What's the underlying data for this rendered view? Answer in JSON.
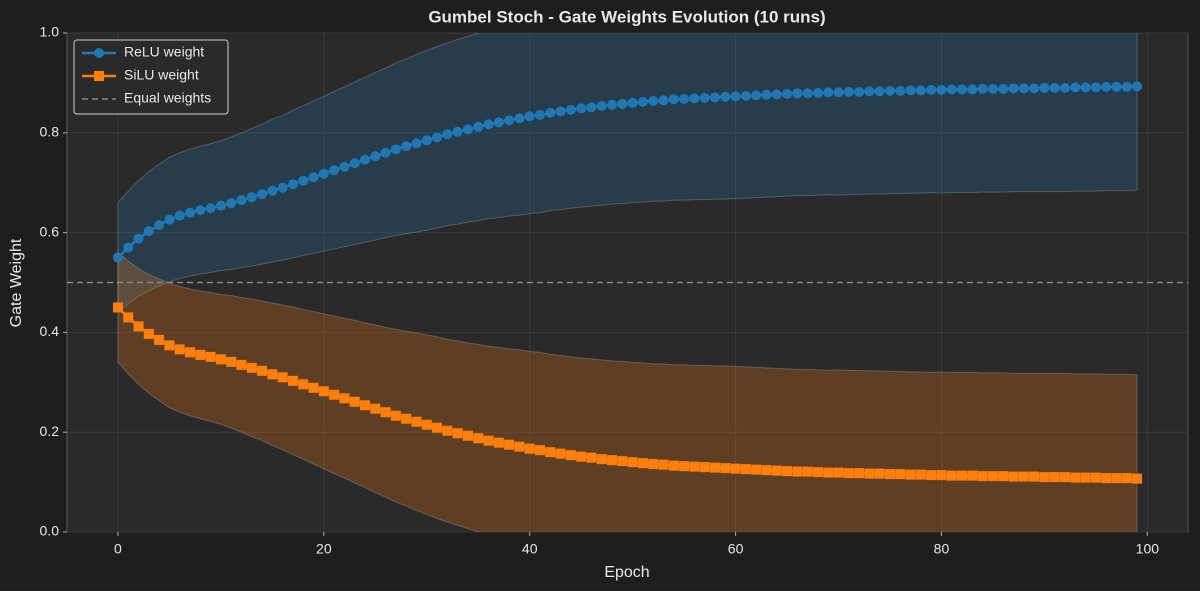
{
  "chart_data": {
    "type": "line",
    "title": "Gumbel Stoch - Gate Weights Evolution (10 runs)",
    "x_label": "Epoch",
    "y_label": "Gate Weight",
    "x": [
      0,
      1,
      2,
      3,
      4,
      5,
      6,
      7,
      8,
      9,
      10,
      11,
      12,
      13,
      14,
      15,
      16,
      17,
      18,
      19,
      20,
      21,
      22,
      23,
      24,
      25,
      26,
      27,
      28,
      29,
      30,
      31,
      32,
      33,
      34,
      35,
      36,
      37,
      38,
      39,
      40,
      41,
      42,
      43,
      44,
      45,
      46,
      47,
      48,
      49,
      50,
      51,
      52,
      53,
      54,
      55,
      56,
      57,
      58,
      59,
      60,
      61,
      62,
      63,
      64,
      65,
      66,
      67,
      68,
      69,
      70,
      71,
      72,
      73,
      74,
      75,
      76,
      77,
      78,
      79,
      80,
      81,
      82,
      83,
      84,
      85,
      86,
      87,
      88,
      89,
      90,
      91,
      92,
      93,
      94,
      95,
      96,
      97,
      98,
      99
    ],
    "series": [
      {
        "name": "ReLU weight",
        "color": "#1f77b4",
        "marker": "circle",
        "values": [
          0.55,
          0.57,
          0.588,
          0.603,
          0.615,
          0.626,
          0.634,
          0.64,
          0.645,
          0.649,
          0.654,
          0.659,
          0.665,
          0.671,
          0.677,
          0.684,
          0.69,
          0.697,
          0.704,
          0.711,
          0.718,
          0.725,
          0.732,
          0.739,
          0.746,
          0.753,
          0.76,
          0.767,
          0.773,
          0.779,
          0.785,
          0.791,
          0.797,
          0.802,
          0.807,
          0.812,
          0.817,
          0.821,
          0.825,
          0.829,
          0.833,
          0.836,
          0.84,
          0.843,
          0.846,
          0.849,
          0.851,
          0.854,
          0.856,
          0.858,
          0.86,
          0.862,
          0.864,
          0.865,
          0.867,
          0.868,
          0.869,
          0.87,
          0.871,
          0.872,
          0.873,
          0.874,
          0.875,
          0.876,
          0.877,
          0.878,
          0.879,
          0.879,
          0.88,
          0.881,
          0.881,
          0.882,
          0.882,
          0.883,
          0.883,
          0.884,
          0.884,
          0.885,
          0.885,
          0.886,
          0.886,
          0.887,
          0.887,
          0.887,
          0.888,
          0.888,
          0.888,
          0.889,
          0.889,
          0.889,
          0.89,
          0.89,
          0.89,
          0.891,
          0.891,
          0.891,
          0.892,
          0.892,
          0.892,
          0.893
        ],
        "std": [
          0.11,
          0.113,
          0.116,
          0.119,
          0.122,
          0.125,
          0.126,
          0.127,
          0.128,
          0.129,
          0.13,
          0.133,
          0.135,
          0.138,
          0.14,
          0.143,
          0.145,
          0.148,
          0.15,
          0.153,
          0.155,
          0.158,
          0.16,
          0.163,
          0.165,
          0.168,
          0.17,
          0.173,
          0.175,
          0.178,
          0.18,
          0.182,
          0.183,
          0.185,
          0.186,
          0.188,
          0.189,
          0.191,
          0.192,
          0.194,
          0.195,
          0.196,
          0.196,
          0.197,
          0.197,
          0.198,
          0.198,
          0.199,
          0.199,
          0.2,
          0.2,
          0.201,
          0.201,
          0.202,
          0.202,
          0.203,
          0.203,
          0.204,
          0.204,
          0.205,
          0.205,
          0.205,
          0.205,
          0.205,
          0.205,
          0.205,
          0.205,
          0.205,
          0.205,
          0.205,
          0.206,
          0.206,
          0.206,
          0.206,
          0.206,
          0.206,
          0.206,
          0.206,
          0.206,
          0.206,
          0.207,
          0.207,
          0.207,
          0.207,
          0.207,
          0.207,
          0.207,
          0.207,
          0.207,
          0.207,
          0.208,
          0.208,
          0.208,
          0.208,
          0.208,
          0.208,
          0.208,
          0.208,
          0.208,
          0.208
        ]
      },
      {
        "name": "SiLU weight",
        "color": "#ff7f0e",
        "marker": "square",
        "values": [
          0.45,
          0.43,
          0.412,
          0.397,
          0.385,
          0.374,
          0.366,
          0.36,
          0.355,
          0.351,
          0.346,
          0.341,
          0.335,
          0.329,
          0.323,
          0.316,
          0.31,
          0.303,
          0.296,
          0.289,
          0.282,
          0.275,
          0.268,
          0.261,
          0.254,
          0.247,
          0.24,
          0.233,
          0.227,
          0.221,
          0.215,
          0.209,
          0.203,
          0.198,
          0.193,
          0.188,
          0.183,
          0.179,
          0.175,
          0.171,
          0.167,
          0.164,
          0.16,
          0.157,
          0.154,
          0.151,
          0.149,
          0.146,
          0.144,
          0.142,
          0.14,
          0.138,
          0.136,
          0.135,
          0.133,
          0.132,
          0.131,
          0.13,
          0.129,
          0.128,
          0.127,
          0.126,
          0.125,
          0.124,
          0.123,
          0.122,
          0.121,
          0.121,
          0.12,
          0.119,
          0.119,
          0.118,
          0.118,
          0.117,
          0.117,
          0.116,
          0.116,
          0.115,
          0.115,
          0.114,
          0.114,
          0.113,
          0.113,
          0.113,
          0.112,
          0.112,
          0.112,
          0.111,
          0.111,
          0.111,
          0.11,
          0.11,
          0.11,
          0.109,
          0.109,
          0.109,
          0.108,
          0.108,
          0.108,
          0.107
        ],
        "std": [
          0.11,
          0.113,
          0.116,
          0.119,
          0.122,
          0.125,
          0.126,
          0.127,
          0.128,
          0.129,
          0.13,
          0.133,
          0.135,
          0.138,
          0.14,
          0.143,
          0.145,
          0.148,
          0.15,
          0.153,
          0.155,
          0.158,
          0.16,
          0.163,
          0.165,
          0.168,
          0.17,
          0.173,
          0.175,
          0.178,
          0.18,
          0.182,
          0.183,
          0.185,
          0.186,
          0.188,
          0.189,
          0.191,
          0.192,
          0.194,
          0.195,
          0.196,
          0.196,
          0.197,
          0.197,
          0.198,
          0.198,
          0.199,
          0.199,
          0.2,
          0.2,
          0.201,
          0.201,
          0.202,
          0.202,
          0.203,
          0.203,
          0.204,
          0.204,
          0.205,
          0.205,
          0.205,
          0.205,
          0.205,
          0.205,
          0.205,
          0.205,
          0.205,
          0.205,
          0.205,
          0.206,
          0.206,
          0.206,
          0.206,
          0.206,
          0.206,
          0.206,
          0.206,
          0.206,
          0.206,
          0.207,
          0.207,
          0.207,
          0.207,
          0.207,
          0.207,
          0.207,
          0.207,
          0.207,
          0.207,
          0.208,
          0.208,
          0.208,
          0.208,
          0.208,
          0.208,
          0.208,
          0.208,
          0.208,
          0.208
        ]
      }
    ],
    "reference_line": {
      "name": "Equal weights",
      "value": 0.5,
      "color": "#888888"
    },
    "xlim": [
      -4.95,
      103.95
    ],
    "ylim": [
      0,
      1
    ],
    "xticks": [
      0,
      20,
      40,
      60,
      80,
      100
    ],
    "yticks": [
      {
        "value": 0,
        "label": "0.0"
      },
      0.2,
      0.4,
      0.6,
      0.8,
      {
        "value": 1,
        "label": "1.0"
      }
    ],
    "grid": true,
    "legend": "upper left"
  }
}
